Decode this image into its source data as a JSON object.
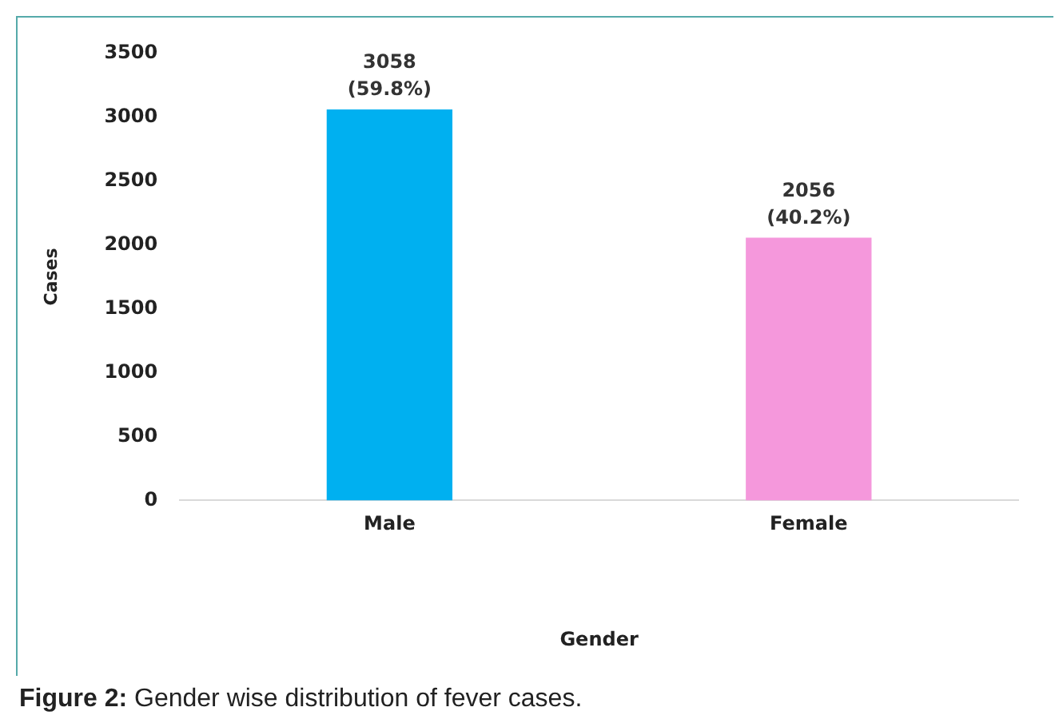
{
  "chart_data": {
    "type": "bar",
    "categories": [
      "Male",
      "Female"
    ],
    "values": [
      3058,
      2056
    ],
    "colors": [
      "#00b0f0",
      "#f598dc"
    ],
    "value_labels": [
      "3058\n(59.8%)",
      "2056\n(40.2%)"
    ],
    "xlabel": "Gender",
    "ylabel": "Cases",
    "ylim": [
      0,
      3500
    ],
    "yticks": [
      0,
      500,
      1000,
      1500,
      2000,
      2500,
      3000,
      3500
    ],
    "grid": false,
    "legend": false,
    "annotations": [
      "Figure 2: Gender wise distribution of fever cases."
    ]
  }
}
